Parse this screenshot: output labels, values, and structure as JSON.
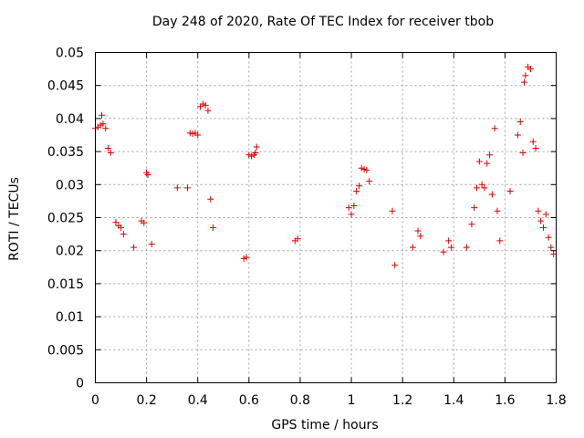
{
  "chart_data": {
    "type": "scatter",
    "title": "Day 248 of 2020, Rate Of TEC Index for receiver tbob",
    "xlabel": "GPS time / hours",
    "ylabel": "ROTI / TECUs",
    "xlim": [
      0,
      1.8
    ],
    "ylim": [
      0,
      0.05
    ],
    "x_ticks": [
      0,
      0.2,
      0.4,
      0.6,
      0.8,
      1,
      1.2,
      1.4,
      1.6,
      1.8
    ],
    "x_tick_labels": [
      "0",
      "0.2",
      "0.4",
      "0.6",
      "0.8",
      "1",
      "1.2",
      "1.4",
      "1.6",
      "1.8"
    ],
    "y_ticks": [
      0,
      0.005,
      0.01,
      0.015,
      0.02,
      0.025,
      0.03,
      0.035,
      0.04,
      0.045,
      0.05
    ],
    "y_tick_labels": [
      "0",
      "0.005",
      "0.01",
      "0.015",
      "0.02",
      "0.025",
      "0.03",
      "0.035",
      "0.04",
      "0.045",
      "0.05"
    ],
    "grid": true,
    "marker": "plus",
    "color": "#e00000",
    "series": [
      {
        "name": "ROTI",
        "points": [
          [
            0.0,
            0.0385
          ],
          [
            0.01,
            0.0387
          ],
          [
            0.02,
            0.039
          ],
          [
            0.025,
            0.0405
          ],
          [
            0.03,
            0.0392
          ],
          [
            0.04,
            0.0385
          ],
          [
            0.05,
            0.0355
          ],
          [
            0.06,
            0.0348
          ],
          [
            0.08,
            0.0243
          ],
          [
            0.09,
            0.0238
          ],
          [
            0.1,
            0.0235
          ],
          [
            0.11,
            0.0225
          ],
          [
            0.15,
            0.0205
          ],
          [
            0.18,
            0.0245
          ],
          [
            0.19,
            0.0242
          ],
          [
            0.2,
            0.0318
          ],
          [
            0.205,
            0.0315
          ],
          [
            0.22,
            0.021
          ],
          [
            0.32,
            0.0295
          ],
          [
            0.36,
            0.0295
          ],
          [
            0.37,
            0.0378
          ],
          [
            0.38,
            0.0377
          ],
          [
            0.39,
            0.0378
          ],
          [
            0.4,
            0.0375
          ],
          [
            0.41,
            0.0418
          ],
          [
            0.42,
            0.0422
          ],
          [
            0.43,
            0.042
          ],
          [
            0.44,
            0.0412
          ],
          [
            0.45,
            0.0278
          ],
          [
            0.46,
            0.0235
          ],
          [
            0.58,
            0.0188
          ],
          [
            0.59,
            0.019
          ],
          [
            0.6,
            0.0345
          ],
          [
            0.61,
            0.0343
          ],
          [
            0.62,
            0.0345
          ],
          [
            0.625,
            0.0348
          ],
          [
            0.63,
            0.0357
          ],
          [
            0.78,
            0.0215
          ],
          [
            0.79,
            0.0218
          ],
          [
            0.99,
            0.0265
          ],
          [
            1.0,
            0.0255
          ],
          [
            1.01,
            0.0268
          ],
          [
            1.02,
            0.029
          ],
          [
            1.03,
            0.0298
          ],
          [
            1.04,
            0.0325
          ],
          [
            1.05,
            0.0323
          ],
          [
            1.06,
            0.0322
          ],
          [
            1.07,
            0.0305
          ],
          [
            1.16,
            0.026
          ],
          [
            1.17,
            0.0178
          ],
          [
            1.24,
            0.0205
          ],
          [
            1.26,
            0.023
          ],
          [
            1.27,
            0.0222
          ],
          [
            1.36,
            0.0198
          ],
          [
            1.38,
            0.0215
          ],
          [
            1.39,
            0.0205
          ],
          [
            1.45,
            0.0205
          ],
          [
            1.47,
            0.024
          ],
          [
            1.48,
            0.0265
          ],
          [
            1.49,
            0.0295
          ],
          [
            1.5,
            0.0335
          ],
          [
            1.51,
            0.03
          ],
          [
            1.52,
            0.0295
          ],
          [
            1.53,
            0.0332
          ],
          [
            1.54,
            0.0345
          ],
          [
            1.55,
            0.0285
          ],
          [
            1.56,
            0.0385
          ],
          [
            1.57,
            0.026
          ],
          [
            1.58,
            0.0215
          ],
          [
            1.62,
            0.029
          ],
          [
            1.65,
            0.0375
          ],
          [
            1.66,
            0.0395
          ],
          [
            1.67,
            0.0348
          ],
          [
            1.675,
            0.0455
          ],
          [
            1.68,
            0.0465
          ],
          [
            1.69,
            0.0478
          ],
          [
            1.7,
            0.0475
          ],
          [
            1.71,
            0.0365
          ],
          [
            1.72,
            0.0355
          ],
          [
            1.73,
            0.026
          ],
          [
            1.74,
            0.0245
          ],
          [
            1.75,
            0.0235
          ],
          [
            1.76,
            0.0255
          ],
          [
            1.77,
            0.022
          ],
          [
            1.78,
            0.0205
          ],
          [
            1.79,
            0.0195
          ]
        ]
      }
    ]
  }
}
